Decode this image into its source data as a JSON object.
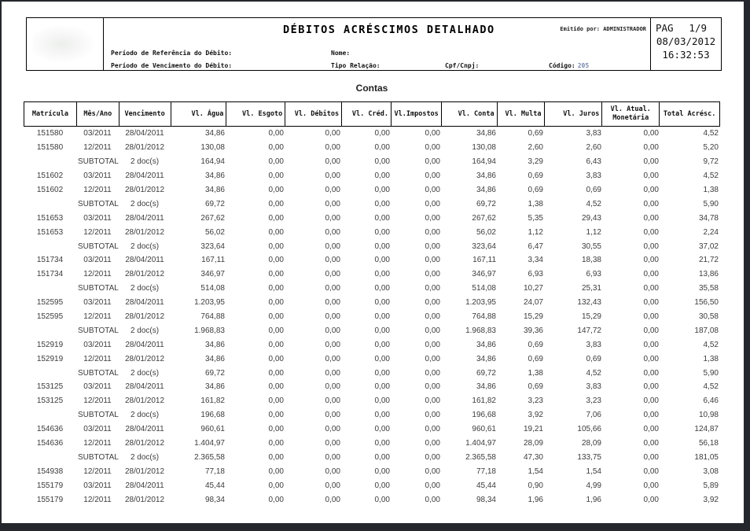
{
  "page": {
    "title": "DÉBITOS ACRÉSCIMOS DETALHADO",
    "emitted_by": "Emitido por: ADMINISTRADOR",
    "pag_label": "PAG",
    "page_number": "1/9",
    "date": "08/03/2012",
    "time": "16:32:53",
    "filters": {
      "ref_label": "Período de Referência do Débito:",
      "venc_label": "Período de Vencimento do Débito:",
      "nome_label": "Nome:",
      "tipo_label": "Tipo Relação:",
      "cpf_label": "Cpf/Cnpj:",
      "codigo_label": "Código:",
      "codigo_value": "205"
    }
  },
  "section_title": "Contas",
  "table": {
    "columns": [
      "Matrícula",
      "Mês/Ano",
      "Vencimento",
      "Vl. Água",
      "Vl. Esgoto",
      "Vl. Débitos",
      "Vl. Créd.",
      "Vl.Impostos",
      "Vl. Conta",
      "Vl. Multa",
      "Vl. Juros",
      "Vl. Atual.\nMonetária",
      "Total Acrésc."
    ],
    "rows": [
      [
        "151580",
        "03/2011",
        "28/04/2011",
        "34,86",
        "0,00",
        "0,00",
        "0,00",
        "0,00",
        "34,86",
        "0,69",
        "3,83",
        "0,00",
        "4,52"
      ],
      [
        "151580",
        "12/2011",
        "28/01/2012",
        "130,08",
        "0,00",
        "0,00",
        "0,00",
        "0,00",
        "130,08",
        "2,60",
        "2,60",
        "0,00",
        "5,20"
      ],
      [
        "",
        "SUBTOTAL",
        "2 doc(s)",
        "164,94",
        "0,00",
        "0,00",
        "0,00",
        "0,00",
        "164,94",
        "3,29",
        "6,43",
        "0,00",
        "9,72"
      ],
      [
        "151602",
        "03/2011",
        "28/04/2011",
        "34,86",
        "0,00",
        "0,00",
        "0,00",
        "0,00",
        "34,86",
        "0,69",
        "3,83",
        "0,00",
        "4,52"
      ],
      [
        "151602",
        "12/2011",
        "28/01/2012",
        "34,86",
        "0,00",
        "0,00",
        "0,00",
        "0,00",
        "34,86",
        "0,69",
        "0,69",
        "0,00",
        "1,38"
      ],
      [
        "",
        "SUBTOTAL",
        "2 doc(s)",
        "69,72",
        "0,00",
        "0,00",
        "0,00",
        "0,00",
        "69,72",
        "1,38",
        "4,52",
        "0,00",
        "5,90"
      ],
      [
        "151653",
        "03/2011",
        "28/04/2011",
        "267,62",
        "0,00",
        "0,00",
        "0,00",
        "0,00",
        "267,62",
        "5,35",
        "29,43",
        "0,00",
        "34,78"
      ],
      [
        "151653",
        "12/2011",
        "28/01/2012",
        "56,02",
        "0,00",
        "0,00",
        "0,00",
        "0,00",
        "56,02",
        "1,12",
        "1,12",
        "0,00",
        "2,24"
      ],
      [
        "",
        "SUBTOTAL",
        "2 doc(s)",
        "323,64",
        "0,00",
        "0,00",
        "0,00",
        "0,00",
        "323,64",
        "6,47",
        "30,55",
        "0,00",
        "37,02"
      ],
      [
        "151734",
        "03/2011",
        "28/04/2011",
        "167,11",
        "0,00",
        "0,00",
        "0,00",
        "0,00",
        "167,11",
        "3,34",
        "18,38",
        "0,00",
        "21,72"
      ],
      [
        "151734",
        "12/2011",
        "28/01/2012",
        "346,97",
        "0,00",
        "0,00",
        "0,00",
        "0,00",
        "346,97",
        "6,93",
        "6,93",
        "0,00",
        "13,86"
      ],
      [
        "",
        "SUBTOTAL",
        "2 doc(s)",
        "514,08",
        "0,00",
        "0,00",
        "0,00",
        "0,00",
        "514,08",
        "10,27",
        "25,31",
        "0,00",
        "35,58"
      ],
      [
        "152595",
        "03/2011",
        "28/04/2011",
        "1.203,95",
        "0,00",
        "0,00",
        "0,00",
        "0,00",
        "1.203,95",
        "24,07",
        "132,43",
        "0,00",
        "156,50"
      ],
      [
        "152595",
        "12/2011",
        "28/01/2012",
        "764,88",
        "0,00",
        "0,00",
        "0,00",
        "0,00",
        "764,88",
        "15,29",
        "15,29",
        "0,00",
        "30,58"
      ],
      [
        "",
        "SUBTOTAL",
        "2 doc(s)",
        "1.968,83",
        "0,00",
        "0,00",
        "0,00",
        "0,00",
        "1.968,83",
        "39,36",
        "147,72",
        "0,00",
        "187,08"
      ],
      [
        "152919",
        "03/2011",
        "28/04/2011",
        "34,86",
        "0,00",
        "0,00",
        "0,00",
        "0,00",
        "34,86",
        "0,69",
        "3,83",
        "0,00",
        "4,52"
      ],
      [
        "152919",
        "12/2011",
        "28/01/2012",
        "34,86",
        "0,00",
        "0,00",
        "0,00",
        "0,00",
        "34,86",
        "0,69",
        "0,69",
        "0,00",
        "1,38"
      ],
      [
        "",
        "SUBTOTAL",
        "2 doc(s)",
        "69,72",
        "0,00",
        "0,00",
        "0,00",
        "0,00",
        "69,72",
        "1,38",
        "4,52",
        "0,00",
        "5,90"
      ],
      [
        "153125",
        "03/2011",
        "28/04/2011",
        "34,86",
        "0,00",
        "0,00",
        "0,00",
        "0,00",
        "34,86",
        "0,69",
        "3,83",
        "0,00",
        "4,52"
      ],
      [
        "153125",
        "12/2011",
        "28/01/2012",
        "161,82",
        "0,00",
        "0,00",
        "0,00",
        "0,00",
        "161,82",
        "3,23",
        "3,23",
        "0,00",
        "6,46"
      ],
      [
        "",
        "SUBTOTAL",
        "2 doc(s)",
        "196,68",
        "0,00",
        "0,00",
        "0,00",
        "0,00",
        "196,68",
        "3,92",
        "7,06",
        "0,00",
        "10,98"
      ],
      [
        "154636",
        "03/2011",
        "28/04/2011",
        "960,61",
        "0,00",
        "0,00",
        "0,00",
        "0,00",
        "960,61",
        "19,21",
        "105,66",
        "0,00",
        "124,87"
      ],
      [
        "154636",
        "12/2011",
        "28/01/2012",
        "1.404,97",
        "0,00",
        "0,00",
        "0,00",
        "0,00",
        "1.404,97",
        "28,09",
        "28,09",
        "0,00",
        "56,18"
      ],
      [
        "",
        "SUBTOTAL",
        "2 doc(s)",
        "2.365,58",
        "0,00",
        "0,00",
        "0,00",
        "0,00",
        "2.365,58",
        "47,30",
        "133,75",
        "0,00",
        "181,05"
      ],
      [
        "154938",
        "12/2011",
        "28/01/2012",
        "77,18",
        "0,00",
        "0,00",
        "0,00",
        "0,00",
        "77,18",
        "1,54",
        "1,54",
        "0,00",
        "3,08"
      ],
      [
        "155179",
        "03/2011",
        "28/04/2011",
        "45,44",
        "0,00",
        "0,00",
        "0,00",
        "0,00",
        "45,44",
        "0,90",
        "4,99",
        "0,00",
        "5,89"
      ],
      [
        "155179",
        "12/2011",
        "28/01/2012",
        "98,34",
        "0,00",
        "0,00",
        "0,00",
        "0,00",
        "98,34",
        "1,96",
        "1,96",
        "0,00",
        "3,92"
      ]
    ]
  }
}
